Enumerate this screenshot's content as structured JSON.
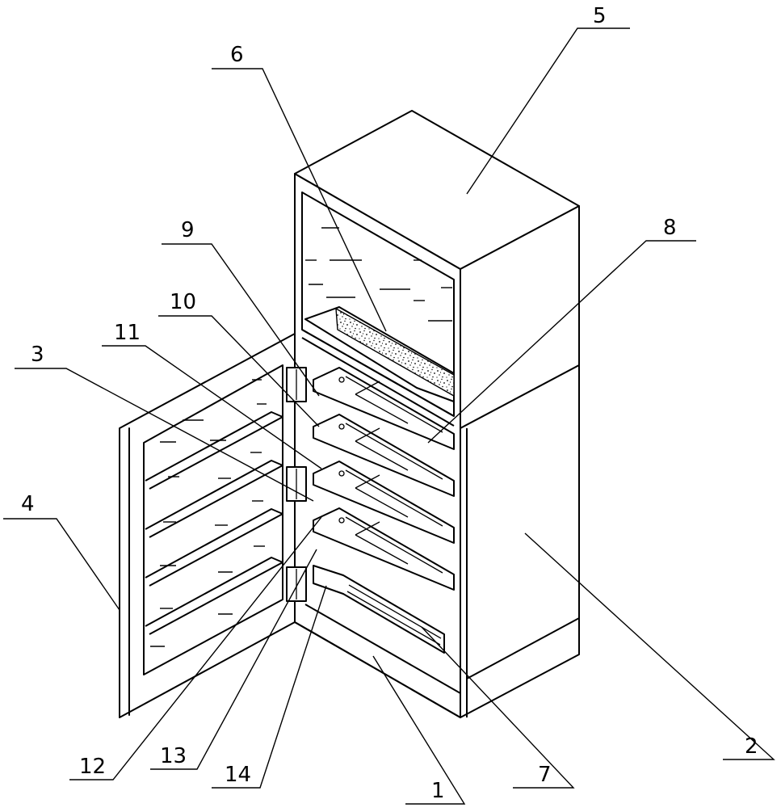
{
  "labels": {
    "l1": "1",
    "l2": "2",
    "l3": "3",
    "l4": "4",
    "l5": "5",
    "l6": "6",
    "l7": "7",
    "l8": "8",
    "l9": "9",
    "l10": "10",
    "l11": "11",
    "l12": "12",
    "l13": "13",
    "l14": "14"
  }
}
